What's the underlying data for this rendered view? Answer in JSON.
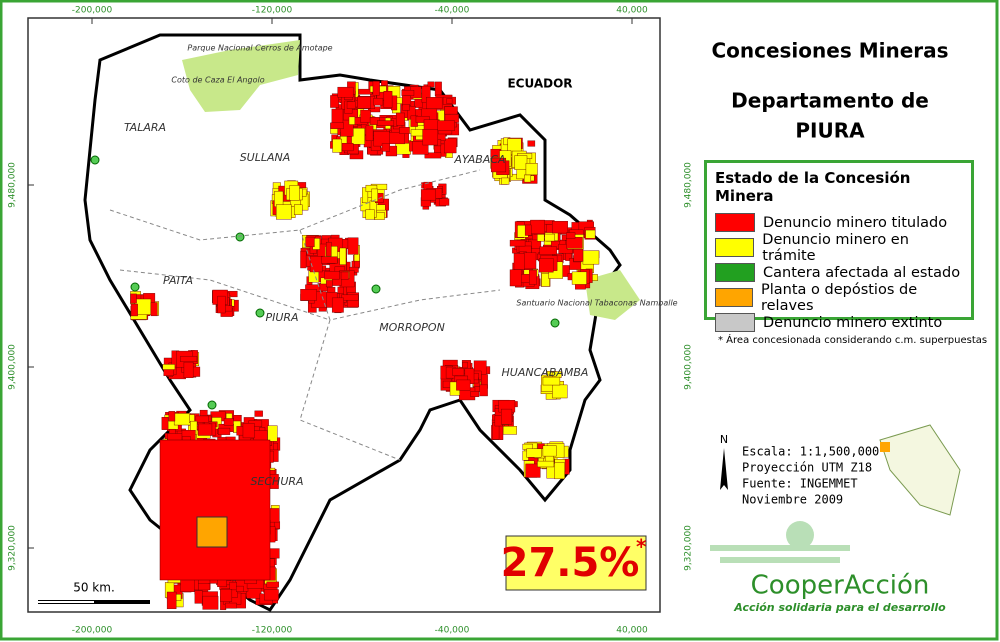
{
  "title": {
    "line1": "Concesiones Mineras",
    "line2": "Departamento de",
    "line3": "PIURA"
  },
  "grid_labels": {
    "x": [
      "-200,000",
      "-120,000",
      "-40,000",
      "40,000"
    ],
    "y": [
      "9,480,000",
      "9,400,000",
      "9,320,000"
    ]
  },
  "places": {
    "ecuador": "ECUADOR",
    "talara": "TALARA",
    "sullana": "SULLANA",
    "ayabaca": "AYABACA",
    "paita": "PAITA",
    "piura": "PIURA",
    "morropon": "MORROPON",
    "huancabamba": "HUANCABAMBA",
    "sechura": "SECHURA",
    "park": "Parque Nacional Cerros de Amotape",
    "coto": "Coto de Caza El Angolo",
    "santuario": "Santuario Nacional Tabaconas Namballe"
  },
  "legend": {
    "title": "Estado de la Concesión Minera",
    "items": [
      {
        "label": "Denuncio minero titulado",
        "color": "#ff0000"
      },
      {
        "label": "Denuncio minero en trámite",
        "color": "#ffff00"
      },
      {
        "label": "Cantera afectada al estado",
        "color": "#22a020"
      },
      {
        "label": "Planta o depóstios de relaves",
        "color": "#ffa500"
      },
      {
        "label": "Denuncio minero extinto",
        "color": "#c8c8c8"
      }
    ]
  },
  "note": "* Área concesionada considerando c.m. superpuestas",
  "info": {
    "north": "N",
    "scale": "Escala: 1:1,500,000",
    "projection": "Proyección UTM Z18",
    "source": "Fuente: INGEMMET",
    "date": "Noviembre 2009"
  },
  "highlight": {
    "value": "27.5%",
    "mark": "*"
  },
  "scale_bar": "50 km.",
  "logo": {
    "name": "CooperAcción",
    "tagline": "Acción solidaria para el desarrollo"
  }
}
